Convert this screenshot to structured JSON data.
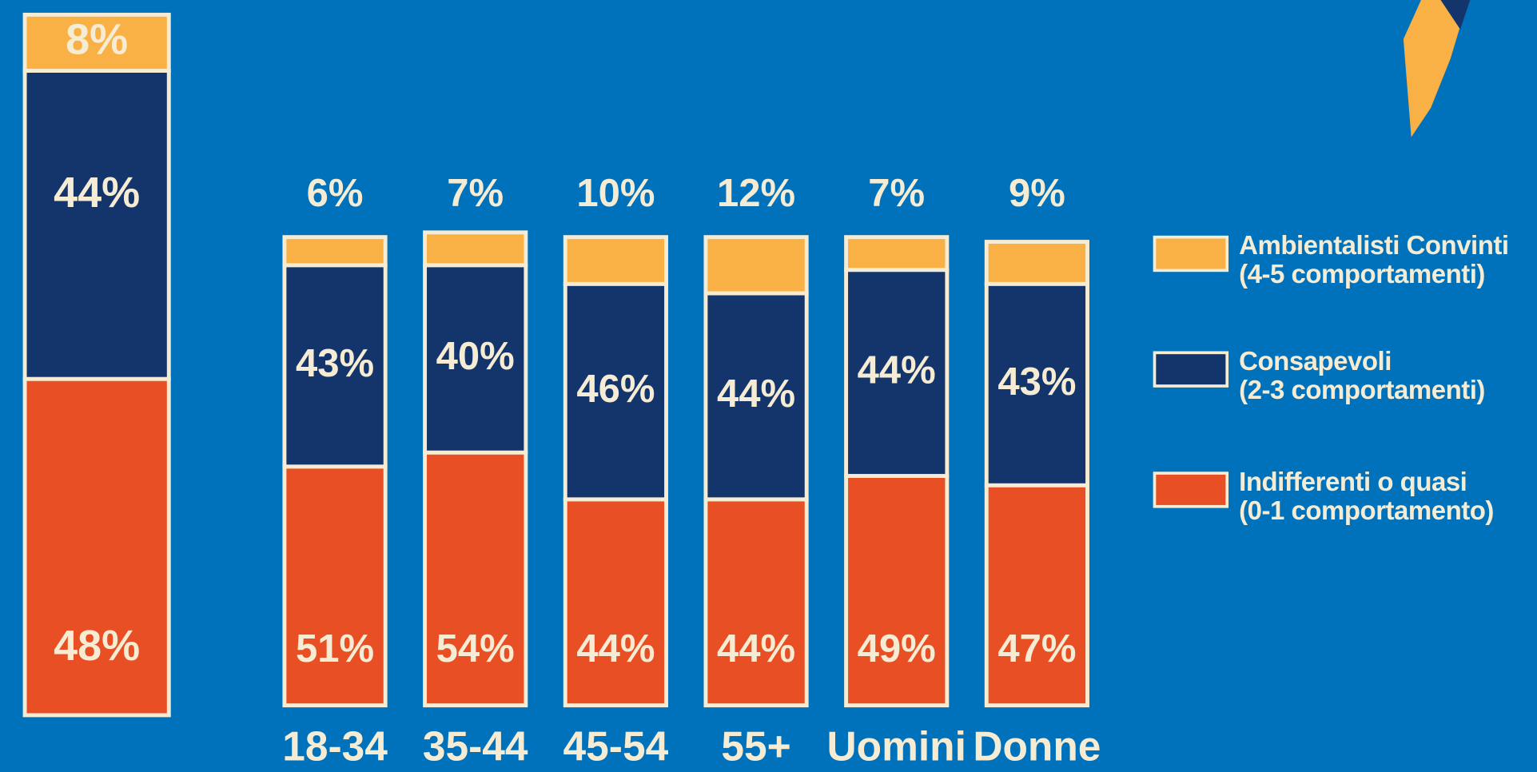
{
  "chart_data": {
    "type": "stacked_bar",
    "categories": [
      null,
      "18-34",
      "35-44",
      "45-54",
      "55+",
      "Uomini",
      "Donne"
    ],
    "ylim": [
      0,
      100
    ],
    "series": [
      {
        "name": "Indifferenti o quasi\n(0-1 comportamento)",
        "color": "#e94f24",
        "values": [
          48,
          51,
          54,
          44,
          44,
          49,
          47
        ],
        "value_labels": [
          "48%",
          "51%",
          "54%",
          "44%",
          "44%",
          "49%",
          "47%"
        ]
      },
      {
        "name": "Consapevoli\n(2-3 comportamenti)",
        "color": "#14356b",
        "values": [
          44,
          43,
          40,
          46,
          44,
          44,
          43
        ],
        "value_labels": [
          "44%",
          "43%",
          "40%",
          "46%",
          "44%",
          "44%",
          "43%"
        ]
      },
      {
        "name": "Ambientalisti Convinti\n(4-5 comportamenti)",
        "color": "#f9b145",
        "values": [
          8,
          6,
          7,
          10,
          12,
          7,
          9
        ],
        "value_labels": [
          "8%",
          "6%",
          "7%",
          "10%",
          "12%",
          "7%",
          "9%"
        ]
      }
    ]
  }
}
